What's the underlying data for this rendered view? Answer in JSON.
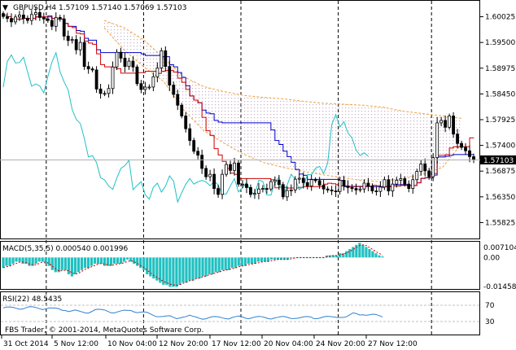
{
  "main": {
    "header": "GBPUSD,H4  1.57109 1.57140 1.57069 1.57103",
    "price_ticks": [
      "1.60025",
      "1.59500",
      "1.58975",
      "1.58450",
      "1.57925",
      "1.57400",
      "1.56875",
      "1.56350",
      "1.55825"
    ],
    "price_range": [
      1.5555,
      1.603
    ],
    "current_price": "1.57103",
    "current_price_value": 1.57103,
    "candle_count": 117,
    "candle_closes": [
      1.6003,
      1.5999,
      1.5992,
      1.6002,
      1.6006,
      1.5999,
      1.5995,
      1.6007,
      1.6011,
      1.6001,
      1.5998,
      1.5995,
      1.5983,
      1.6001,
      1.5998,
      1.5963,
      1.5954,
      1.5956,
      1.5935,
      1.595,
      1.5901,
      1.5896,
      1.5894,
      1.5855,
      1.5846,
      1.5846,
      1.5856,
      1.59,
      1.593,
      1.5918,
      1.5901,
      1.5912,
      1.59,
      1.5866,
      1.5854,
      1.5859,
      1.5859,
      1.588,
      1.5898,
      1.5933,
      1.5901,
      1.5863,
      1.5844,
      1.5822,
      1.58,
      1.5774,
      1.575,
      1.5728,
      1.572,
      1.5693,
      1.5676,
      1.5681,
      1.5652,
      1.564,
      1.5681,
      1.5701,
      1.5689,
      1.5704,
      1.5661,
      1.5661,
      1.5654,
      1.564,
      1.5642,
      1.5651,
      1.5652,
      1.5651,
      1.5666,
      1.5669,
      1.566,
      1.5635,
      1.5648,
      1.5649,
      1.5671,
      1.5673,
      1.5664,
      1.5657,
      1.567,
      1.5668,
      1.5659,
      1.5651,
      1.5649,
      1.5647,
      1.5646,
      1.5669,
      1.5657,
      1.5654,
      1.5652,
      1.5649,
      1.5651,
      1.5663,
      1.5657,
      1.5647,
      1.5646,
      1.5655,
      1.567,
      1.5647,
      1.5661,
      1.5669,
      1.5672,
      1.5661,
      1.5652,
      1.567,
      1.5687,
      1.5702,
      1.5688,
      1.5676,
      1.5715,
      1.5786,
      1.5791,
      1.5777,
      1.58,
      1.5763,
      1.5744,
      1.5736,
      1.5729,
      1.5717,
      1.571
    ],
    "cloud_upper": [
      1.5995,
      1.598,
      1.5955,
      1.5918,
      1.588,
      1.586,
      1.585,
      1.5842,
      1.5838,
      1.5835,
      1.583,
      1.5826,
      1.5824,
      1.5822,
      1.5818,
      1.581,
      1.5805,
      1.58,
      1.5795
    ],
    "cloud_lower": [
      1.598,
      1.5935,
      1.59,
      1.587,
      1.5812,
      1.577,
      1.5745,
      1.5722,
      1.5705,
      1.5695,
      1.5687,
      1.568,
      1.5674,
      1.5668,
      1.5666,
      1.5672,
      1.568,
      1.5695,
      1.5745
    ]
  },
  "macd": {
    "header": "MACD(5,35,5) 0.000540 0.001996",
    "ticks": [
      "0.007104",
      "0.00",
      "-0.014588"
    ],
    "range": [
      -0.0146,
      0.0071
    ],
    "histogram": [
      -0.005,
      -0.004,
      -0.004,
      -0.003,
      -0.002,
      -0.002,
      -0.003,
      -0.003,
      -0.004,
      -0.004,
      -0.003,
      -0.002,
      -0.002,
      -0.003,
      -0.004,
      -0.006,
      -0.007,
      -0.007,
      -0.006,
      -0.006,
      -0.008,
      -0.009,
      -0.008,
      -0.007,
      -0.006,
      -0.005,
      -0.005,
      -0.004,
      -0.003,
      -0.003,
      -0.003,
      -0.004,
      -0.004,
      -0.004,
      -0.003,
      -0.003,
      -0.003,
      -0.002,
      -0.001,
      -0.002,
      -0.003,
      -0.004,
      -0.005,
      -0.006,
      -0.008,
      -0.009,
      -0.01,
      -0.011,
      -0.012,
      -0.013,
      -0.013,
      -0.014,
      -0.014,
      -0.014,
      -0.013,
      -0.012,
      -0.012,
      -0.011,
      -0.011,
      -0.01,
      -0.01,
      -0.009,
      -0.009,
      -0.008,
      -0.008,
      -0.007,
      -0.007,
      -0.006,
      -0.006,
      -0.006,
      -0.005,
      -0.005,
      -0.004,
      -0.004,
      -0.004,
      -0.003,
      -0.003,
      -0.003,
      -0.002,
      -0.002,
      -0.002,
      -0.002,
      -0.001,
      -0.001,
      -0.001,
      -0.001,
      -0.001,
      -0.001,
      0.0,
      0.0,
      0.0,
      0.0,
      0.0,
      0.0,
      0.0,
      0.0,
      0.0,
      0.0,
      0.0,
      0.001,
      0.001,
      0.001,
      0.001,
      0.002,
      0.002,
      0.003,
      0.004,
      0.005,
      0.006,
      0.007,
      0.006,
      0.005,
      0.004,
      0.003,
      0.002,
      0.001,
      0.0005
    ]
  },
  "rsi": {
    "header": "RSI(22) 48.5435",
    "ticks": [
      "70",
      "30"
    ],
    "range": [
      0,
      100
    ]
  },
  "watermark": "FBS Trader, © 2001-2014, MetaQuotes Software Corp.",
  "time_axis": [
    "31 Oct 2014",
    "5 Nov 12:00",
    "10 Nov 04:00",
    "12 Nov 20:00",
    "17 Nov 12:00",
    "20 Nov 04:00",
    "24 Nov 20:00",
    "27 Nov 12:00"
  ],
  "colors": {
    "bull_body": "#ffffff",
    "bear_body": "#000000",
    "tenkan": "#cc0000",
    "kijun": "#0000cc",
    "chikou": "#20c0c8",
    "cloud_edge": "#f0a040",
    "cloud_fill": "#c8b0c8",
    "macd_hist": "#20c0c0",
    "macd_signal": "#cc0000",
    "rsi_line": "#3080d0"
  }
}
